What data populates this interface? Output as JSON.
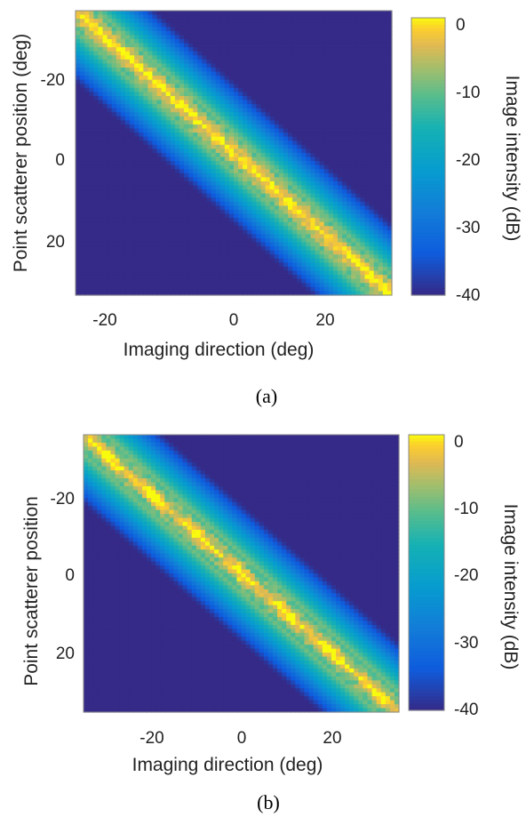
{
  "chart_data": [
    {
      "panel": "(a)",
      "type": "heatmap",
      "xlabel": "Imaging direction (deg)",
      "ylabel": "Point scatterer position (deg)",
      "colorbar_label": "Image intensity (dB)",
      "xlim": [
        -35,
        35
      ],
      "ylim": [
        -35,
        35
      ],
      "y_reversed": true,
      "x_ticks": [
        -20,
        0,
        20
      ],
      "y_ticks": [
        -20,
        0,
        20
      ],
      "x_tick_labels": [
        "-20",
        "0",
        "20"
      ],
      "y_tick_labels": [
        "-20",
        "0",
        "20"
      ],
      "clim": [
        -40,
        0
      ],
      "colorbar_ticks": [
        0,
        -10,
        -20,
        -30,
        -40
      ],
      "colorbar_tick_labels": [
        "0",
        "-10",
        "-20",
        "-30",
        "-40"
      ],
      "colormap": "parula",
      "pattern": {
        "main_ridge": "y = x, peak 0 dB",
        "side_ridges": "parallel to main ridge at about ±5 deg offset, around -10 dB",
        "spread_db_per_deg": 2.6,
        "floor_db": -40
      }
    },
    {
      "panel": "(b)",
      "type": "heatmap",
      "xlabel": "Imaging direction (deg)",
      "ylabel": "Point scatterer position",
      "colorbar_label": "Image intensity (dB)",
      "xlim": [
        -35,
        35
      ],
      "ylim": [
        -35,
        35
      ],
      "y_reversed": true,
      "x_ticks": [
        -20,
        0,
        20
      ],
      "y_ticks": [
        -20,
        0,
        20
      ],
      "x_tick_labels": [
        "-20",
        "0",
        "20"
      ],
      "y_tick_labels": [
        "-20",
        "0",
        "20"
      ],
      "clim": [
        -40,
        0
      ],
      "colorbar_ticks": [
        0,
        -10,
        -20,
        -30,
        -40
      ],
      "colorbar_tick_labels": [
        "0",
        "-10",
        "-20",
        "-30",
        "-40"
      ],
      "colormap": "parula",
      "pattern": {
        "main_ridge": "y = x, peak 0 dB with bright spots every 10 deg",
        "side_ridges": "parallel to main ridge at about ±5 deg offset, around -10 dB",
        "spread_db_per_deg": 3.0,
        "floor_db": -40
      }
    }
  ]
}
